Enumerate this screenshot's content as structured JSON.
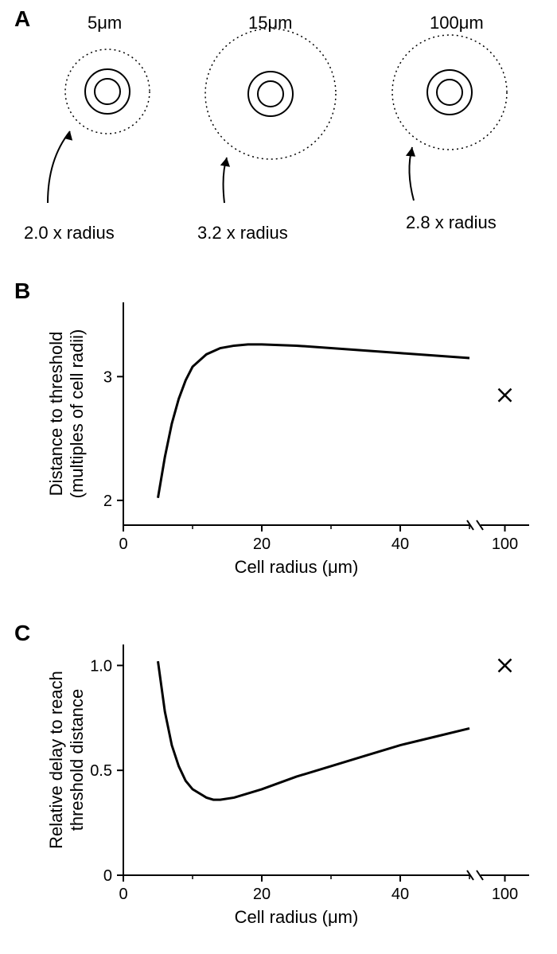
{
  "panelA": {
    "label": "A",
    "cells": [
      {
        "title": "5μm",
        "radius_label": "2.0 x radius",
        "outer_r_ratio": 1.0,
        "inner_r_ratio": 0.55,
        "dotted_ratio": 2.0
      },
      {
        "title": "15μm",
        "radius_label": "3.2 x radius",
        "outer_r_ratio": 1.0,
        "inner_r_ratio": 0.55,
        "dotted_ratio": 3.2
      },
      {
        "title": "100μm",
        "radius_label": "2.8 x radius",
        "outer_r_ratio": 1.0,
        "inner_r_ratio": 0.55,
        "dotted_ratio": 2.8
      }
    ]
  },
  "panelB": {
    "label": "B",
    "ylabel_line1": "Distance to threshold",
    "ylabel_line2": "(multiples of cell radii)",
    "xlabel": "Cell radius (μm)",
    "xlim": [
      0,
      50
    ],
    "ylim": [
      1.8,
      3.6
    ],
    "xticks": [
      0,
      20,
      40
    ],
    "xtick_labels": [
      "0",
      "20",
      "40"
    ],
    "yticks": [
      2,
      3
    ],
    "ytick_labels": [
      "2",
      "3"
    ],
    "break_label": "100",
    "cross_point": [
      100,
      2.85
    ],
    "curve": [
      [
        5,
        2.02
      ],
      [
        6,
        2.35
      ],
      [
        7,
        2.62
      ],
      [
        8,
        2.82
      ],
      [
        9,
        2.97
      ],
      [
        10,
        3.08
      ],
      [
        12,
        3.18
      ],
      [
        14,
        3.23
      ],
      [
        16,
        3.25
      ],
      [
        18,
        3.26
      ],
      [
        20,
        3.26
      ],
      [
        25,
        3.25
      ],
      [
        30,
        3.23
      ],
      [
        35,
        3.21
      ],
      [
        40,
        3.19
      ],
      [
        45,
        3.17
      ],
      [
        50,
        3.15
      ]
    ],
    "line_color": "#000000",
    "line_width": 3,
    "axis_color": "#000000",
    "background": "#ffffff"
  },
  "panelC": {
    "label": "C",
    "ylabel_line1": "Relative delay to reach",
    "ylabel_line2": "threshold distance",
    "xlabel": "Cell radius (μm)",
    "xlim": [
      0,
      50
    ],
    "ylim": [
      0,
      1.1
    ],
    "xticks": [
      0,
      20,
      40
    ],
    "xtick_labels": [
      "0",
      "20",
      "40"
    ],
    "yticks": [
      0,
      0.5,
      1.0
    ],
    "ytick_labels": [
      "0",
      "0.5",
      "1.0"
    ],
    "break_label": "100",
    "cross_point": [
      100,
      1.0
    ],
    "curve": [
      [
        5,
        1.02
      ],
      [
        6,
        0.78
      ],
      [
        7,
        0.62
      ],
      [
        8,
        0.52
      ],
      [
        9,
        0.45
      ],
      [
        10,
        0.41
      ],
      [
        12,
        0.37
      ],
      [
        13,
        0.36
      ],
      [
        14,
        0.36
      ],
      [
        16,
        0.37
      ],
      [
        18,
        0.39
      ],
      [
        20,
        0.41
      ],
      [
        25,
        0.47
      ],
      [
        30,
        0.52
      ],
      [
        35,
        0.57
      ],
      [
        40,
        0.62
      ],
      [
        45,
        0.66
      ],
      [
        50,
        0.7
      ]
    ],
    "line_color": "#000000",
    "line_width": 3,
    "axis_color": "#000000",
    "background": "#ffffff"
  }
}
